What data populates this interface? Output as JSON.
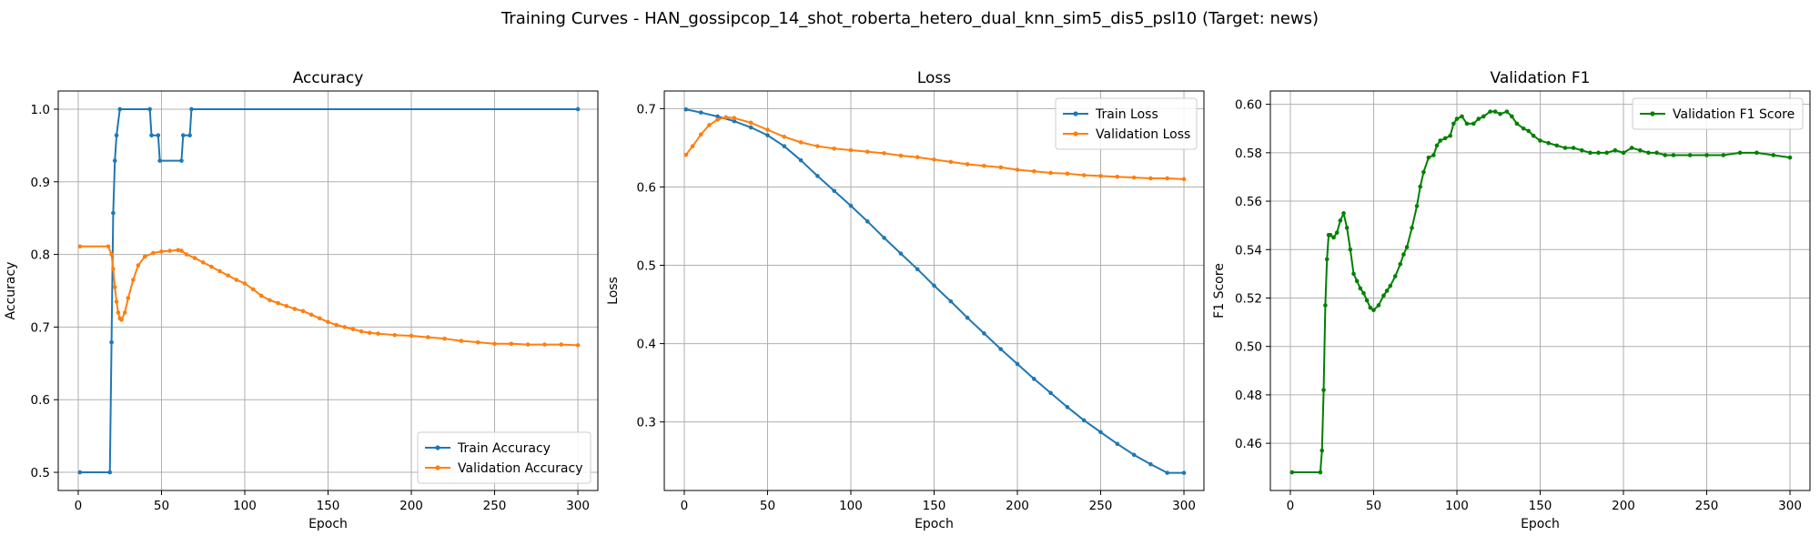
{
  "figure": {
    "title": "Training Curves - HAN_gossipcop_14_shot_roberta_hetero_dual_knn_sim5_dis5_psl10 (Target: news)"
  },
  "colors": {
    "train": "#1f77b4",
    "validation": "#ff7f0e",
    "f1": "#008000",
    "grid": "#b0b0b0"
  },
  "chart_data": [
    {
      "type": "line",
      "title": "Accuracy",
      "xlabel": "Epoch",
      "ylabel": "Accuracy",
      "xlim": [
        -12,
        312
      ],
      "ylim": [
        0.475,
        1.025
      ],
      "xticks": [
        0,
        50,
        100,
        150,
        200,
        250,
        300
      ],
      "yticks": [
        0.5,
        0.6,
        0.7,
        0.8,
        0.9,
        1.0
      ],
      "ytick_labels": [
        "0.5",
        "0.6",
        "0.7",
        "0.8",
        "0.9",
        "1.0"
      ],
      "grid": true,
      "legend_position": "lower-right",
      "series": [
        {
          "name": "Train Accuracy",
          "color": "#1f77b4",
          "points": [
            [
              1,
              0.5
            ],
            [
              19,
              0.5
            ],
            [
              20,
              0.679
            ],
            [
              21,
              0.857
            ],
            [
              22,
              0.929
            ],
            [
              23,
              0.964
            ],
            [
              25,
              1.0
            ],
            [
              43,
              1.0
            ],
            [
              44,
              0.964
            ],
            [
              48,
              0.964
            ],
            [
              49,
              0.929
            ],
            [
              62,
              0.929
            ],
            [
              63,
              0.964
            ],
            [
              67,
              0.964
            ],
            [
              68,
              1.0
            ],
            [
              300,
              1.0
            ]
          ]
        },
        {
          "name": "Validation Accuracy",
          "color": "#ff7f0e",
          "points": [
            [
              1,
              0.811
            ],
            [
              18,
              0.811
            ],
            [
              20,
              0.8
            ],
            [
              21,
              0.78
            ],
            [
              22,
              0.755
            ],
            [
              23,
              0.735
            ],
            [
              24,
              0.72
            ],
            [
              25,
              0.712
            ],
            [
              26,
              0.71
            ],
            [
              28,
              0.72
            ],
            [
              30,
              0.74
            ],
            [
              33,
              0.765
            ],
            [
              36,
              0.785
            ],
            [
              40,
              0.797
            ],
            [
              45,
              0.802
            ],
            [
              50,
              0.804
            ],
            [
              55,
              0.805
            ],
            [
              60,
              0.806
            ],
            [
              62,
              0.805
            ],
            [
              65,
              0.8
            ],
            [
              70,
              0.795
            ],
            [
              75,
              0.789
            ],
            [
              80,
              0.783
            ],
            [
              85,
              0.777
            ],
            [
              90,
              0.771
            ],
            [
              95,
              0.765
            ],
            [
              100,
              0.76
            ],
            [
              105,
              0.752
            ],
            [
              110,
              0.743
            ],
            [
              115,
              0.737
            ],
            [
              120,
              0.733
            ],
            [
              125,
              0.729
            ],
            [
              130,
              0.725
            ],
            [
              135,
              0.722
            ],
            [
              140,
              0.717
            ],
            [
              145,
              0.712
            ],
            [
              150,
              0.707
            ],
            [
              155,
              0.703
            ],
            [
              160,
              0.7
            ],
            [
              165,
              0.697
            ],
            [
              170,
              0.694
            ],
            [
              175,
              0.692
            ],
            [
              180,
              0.691
            ],
            [
              190,
              0.689
            ],
            [
              200,
              0.688
            ],
            [
              210,
              0.686
            ],
            [
              220,
              0.684
            ],
            [
              230,
              0.681
            ],
            [
              240,
              0.679
            ],
            [
              250,
              0.677
            ],
            [
              260,
              0.677
            ],
            [
              270,
              0.676
            ],
            [
              280,
              0.676
            ],
            [
              290,
              0.676
            ],
            [
              300,
              0.675
            ]
          ]
        }
      ]
    },
    {
      "type": "line",
      "title": "Loss",
      "xlabel": "Epoch",
      "ylabel": "Loss",
      "xlim": [
        -12,
        312
      ],
      "ylim": [
        0.2125,
        0.7225
      ],
      "xticks": [
        0,
        50,
        100,
        150,
        200,
        250,
        300
      ],
      "yticks": [
        0.3,
        0.4,
        0.5,
        0.6,
        0.7
      ],
      "ytick_labels": [
        "0.3",
        "0.4",
        "0.5",
        "0.6",
        "0.7"
      ],
      "grid": true,
      "legend_position": "upper-right",
      "series": [
        {
          "name": "Train Loss",
          "color": "#1f77b4",
          "points": [
            [
              1,
              0.699
            ],
            [
              10,
              0.695
            ],
            [
              20,
              0.69
            ],
            [
              30,
              0.684
            ],
            [
              40,
              0.676
            ],
            [
              50,
              0.666
            ],
            [
              60,
              0.652
            ],
            [
              70,
              0.634
            ],
            [
              80,
              0.614
            ],
            [
              90,
              0.595
            ],
            [
              100,
              0.576
            ],
            [
              110,
              0.556
            ],
            [
              120,
              0.535
            ],
            [
              130,
              0.515
            ],
            [
              140,
              0.495
            ],
            [
              150,
              0.474
            ],
            [
              160,
              0.454
            ],
            [
              170,
              0.433
            ],
            [
              180,
              0.413
            ],
            [
              190,
              0.393
            ],
            [
              200,
              0.374
            ],
            [
              210,
              0.355
            ],
            [
              220,
              0.337
            ],
            [
              230,
              0.319
            ],
            [
              240,
              0.302
            ],
            [
              250,
              0.287
            ],
            [
              260,
              0.272
            ],
            [
              270,
              0.258
            ],
            [
              280,
              0.246
            ],
            [
              290,
              0.235
            ],
            [
              300,
              0.235
            ]
          ]
        },
        {
          "name": "Validation Loss",
          "color": "#ff7f0e",
          "points": [
            [
              1,
              0.641
            ],
            [
              5,
              0.652
            ],
            [
              10,
              0.667
            ],
            [
              15,
              0.679
            ],
            [
              20,
              0.686
            ],
            [
              25,
              0.689
            ],
            [
              30,
              0.688
            ],
            [
              40,
              0.682
            ],
            [
              50,
              0.673
            ],
            [
              60,
              0.664
            ],
            [
              70,
              0.657
            ],
            [
              80,
              0.652
            ],
            [
              90,
              0.649
            ],
            [
              100,
              0.647
            ],
            [
              110,
              0.645
            ],
            [
              120,
              0.643
            ],
            [
              130,
              0.64
            ],
            [
              140,
              0.638
            ],
            [
              150,
              0.635
            ],
            [
              160,
              0.632
            ],
            [
              170,
              0.629
            ],
            [
              180,
              0.627
            ],
            [
              190,
              0.625
            ],
            [
              200,
              0.622
            ],
            [
              210,
              0.62
            ],
            [
              220,
              0.618
            ],
            [
              230,
              0.617
            ],
            [
              240,
              0.615
            ],
            [
              250,
              0.614
            ],
            [
              260,
              0.613
            ],
            [
              270,
              0.612
            ],
            [
              280,
              0.611
            ],
            [
              290,
              0.611
            ],
            [
              300,
              0.61
            ]
          ]
        }
      ]
    },
    {
      "type": "line",
      "title": "Validation F1",
      "xlabel": "Epoch",
      "ylabel": "F1 Score",
      "xlim": [
        -12,
        312
      ],
      "ylim": [
        0.4405,
        0.6055
      ],
      "xticks": [
        0,
        50,
        100,
        150,
        200,
        250,
        300
      ],
      "yticks": [
        0.46,
        0.48,
        0.5,
        0.52,
        0.54,
        0.56,
        0.58,
        0.6
      ],
      "ytick_labels": [
        "0.46",
        "0.48",
        "0.50",
        "0.52",
        "0.54",
        "0.56",
        "0.58",
        "0.60"
      ],
      "grid": true,
      "legend_position": "upper-right",
      "series": [
        {
          "name": "Validation F1 Score",
          "color": "#008000",
          "points": [
            [
              1,
              0.448
            ],
            [
              18,
              0.448
            ],
            [
              19,
              0.457
            ],
            [
              20,
              0.482
            ],
            [
              21,
              0.517
            ],
            [
              22,
              0.536
            ],
            [
              23,
              0.546
            ],
            [
              24,
              0.546
            ],
            [
              26,
              0.545
            ],
            [
              28,
              0.547
            ],
            [
              30,
              0.552
            ],
            [
              32,
              0.555
            ],
            [
              34,
              0.549
            ],
            [
              36,
              0.54
            ],
            [
              38,
              0.53
            ],
            [
              40,
              0.527
            ],
            [
              42,
              0.524
            ],
            [
              44,
              0.522
            ],
            [
              46,
              0.519
            ],
            [
              48,
              0.516
            ],
            [
              50,
              0.515
            ],
            [
              53,
              0.517
            ],
            [
              56,
              0.521
            ],
            [
              58,
              0.523
            ],
            [
              60,
              0.525
            ],
            [
              63,
              0.529
            ],
            [
              66,
              0.534
            ],
            [
              68,
              0.538
            ],
            [
              70,
              0.541
            ],
            [
              73,
              0.549
            ],
            [
              76,
              0.558
            ],
            [
              78,
              0.566
            ],
            [
              80,
              0.572
            ],
            [
              83,
              0.578
            ],
            [
              86,
              0.579
            ],
            [
              88,
              0.583
            ],
            [
              90,
              0.585
            ],
            [
              93,
              0.586
            ],
            [
              96,
              0.587
            ],
            [
              98,
              0.592
            ],
            [
              100,
              0.594
            ],
            [
              103,
              0.595
            ],
            [
              106,
              0.592
            ],
            [
              110,
              0.592
            ],
            [
              113,
              0.594
            ],
            [
              116,
              0.595
            ],
            [
              120,
              0.597
            ],
            [
              123,
              0.597
            ],
            [
              126,
              0.596
            ],
            [
              130,
              0.597
            ],
            [
              133,
              0.595
            ],
            [
              136,
              0.592
            ],
            [
              140,
              0.59
            ],
            [
              143,
              0.589
            ],
            [
              146,
              0.587
            ],
            [
              150,
              0.585
            ],
            [
              155,
              0.584
            ],
            [
              160,
              0.583
            ],
            [
              165,
              0.582
            ],
            [
              170,
              0.582
            ],
            [
              175,
              0.581
            ],
            [
              180,
              0.58
            ],
            [
              185,
              0.58
            ],
            [
              190,
              0.58
            ],
            [
              195,
              0.581
            ],
            [
              200,
              0.58
            ],
            [
              205,
              0.582
            ],
            [
              210,
              0.581
            ],
            [
              215,
              0.58
            ],
            [
              220,
              0.58
            ],
            [
              225,
              0.579
            ],
            [
              230,
              0.579
            ],
            [
              240,
              0.579
            ],
            [
              250,
              0.579
            ],
            [
              260,
              0.579
            ],
            [
              270,
              0.58
            ],
            [
              280,
              0.58
            ],
            [
              290,
              0.579
            ],
            [
              300,
              0.578
            ]
          ]
        }
      ]
    }
  ]
}
